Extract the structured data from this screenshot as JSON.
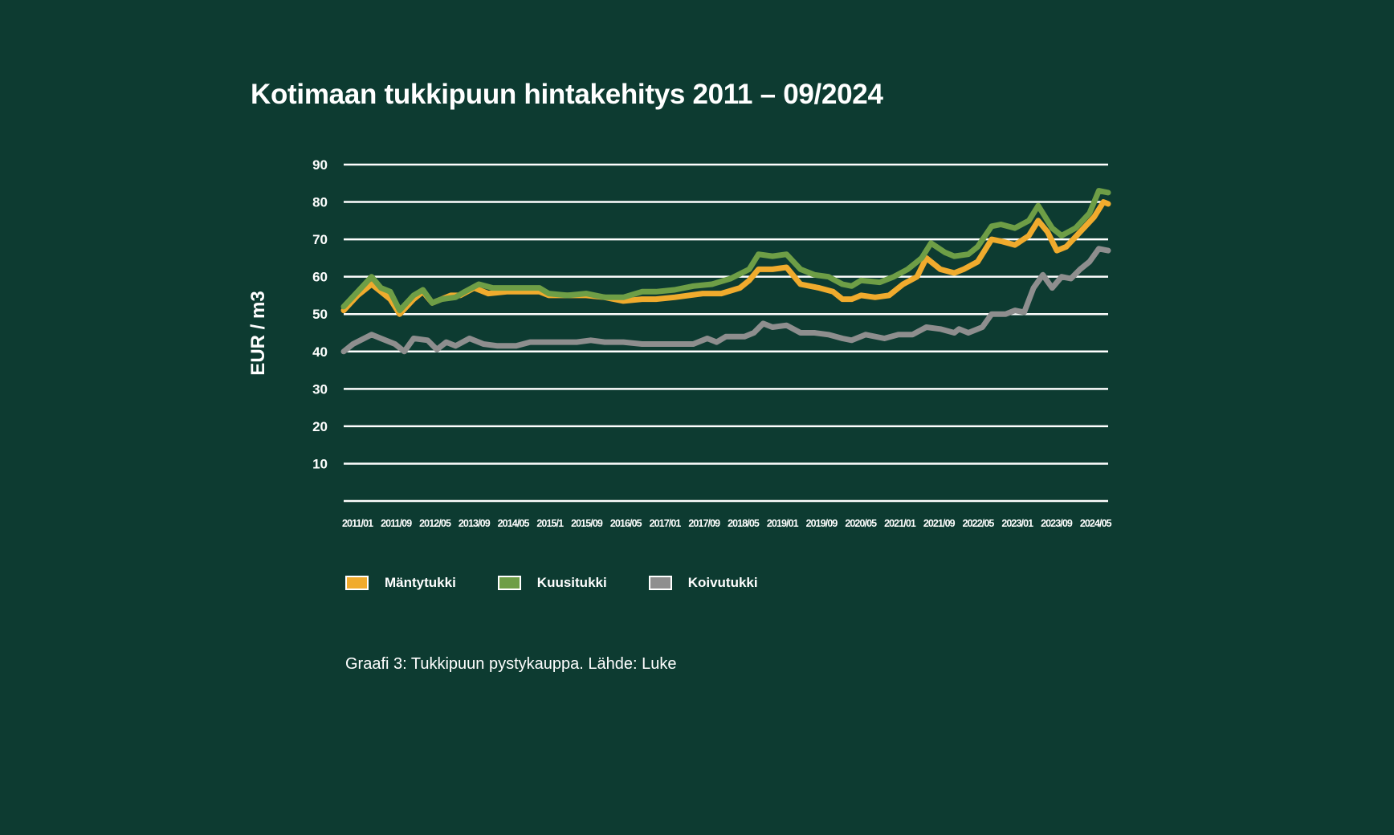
{
  "chart_data": {
    "type": "line",
    "title": "Kotimaan tukkipuun hintakehitys 2011 – 09/2024",
    "ylabel": "EUR / m3",
    "xlabel": "",
    "x_unit": "months since 2011/01",
    "xlim": [
      0,
      164
    ],
    "ylim": [
      0,
      90
    ],
    "yticks": [
      10,
      20,
      30,
      40,
      50,
      60,
      70,
      80,
      90
    ],
    "xtick_labels": [
      "2011/01",
      "2011/09",
      "2012/05",
      "2013/09",
      "2014/05",
      "2015/1",
      "2015/09",
      "2016/05",
      "2017/01",
      "2017/09",
      "2018/05",
      "2019/01",
      "2019/09",
      "2020/05",
      "2021/01",
      "2021/09",
      "2022/05",
      "2023/01",
      "2023/09",
      "2024/05"
    ],
    "grid": true,
    "legend_position": "bottom-left",
    "caption": "Graafi 3: Tukkipuun pystykauppa. Lähde: Luke",
    "series": [
      {
        "name": "Mäntytukki",
        "color": "#f0ab2d",
        "points": [
          [
            0,
            51
          ],
          [
            3,
            55
          ],
          [
            6,
            58
          ],
          [
            8,
            56
          ],
          [
            10,
            54
          ],
          [
            12,
            50
          ],
          [
            15,
            54
          ],
          [
            17,
            56
          ],
          [
            19,
            53
          ],
          [
            21,
            54
          ],
          [
            23,
            55
          ],
          [
            25,
            55
          ],
          [
            28,
            57
          ],
          [
            31,
            55.5
          ],
          [
            35,
            56
          ],
          [
            39,
            56
          ],
          [
            42,
            56
          ],
          [
            44,
            55
          ],
          [
            48,
            55
          ],
          [
            52,
            55
          ],
          [
            56,
            54.5
          ],
          [
            60,
            53.5
          ],
          [
            64,
            54
          ],
          [
            67,
            54
          ],
          [
            71,
            54.5
          ],
          [
            77,
            55.5
          ],
          [
            81,
            55.5
          ],
          [
            85,
            57
          ],
          [
            87,
            59
          ],
          [
            89,
            62
          ],
          [
            92,
            62
          ],
          [
            95,
            62.5
          ],
          [
            98,
            58
          ],
          [
            102,
            57
          ],
          [
            105,
            56
          ],
          [
            107,
            54
          ],
          [
            109,
            54
          ],
          [
            111,
            55
          ],
          [
            114,
            54.5
          ],
          [
            117,
            55
          ],
          [
            120,
            58
          ],
          [
            123,
            60
          ],
          [
            125,
            65
          ],
          [
            128,
            62
          ],
          [
            131,
            61
          ],
          [
            133,
            62
          ],
          [
            136,
            64
          ],
          [
            139,
            70
          ],
          [
            141,
            69.5
          ],
          [
            144,
            68.5
          ],
          [
            147,
            71
          ],
          [
            149,
            75
          ],
          [
            151,
            72
          ],
          [
            153,
            67
          ],
          [
            155,
            68
          ],
          [
            158,
            72
          ],
          [
            161,
            76
          ],
          [
            163,
            80
          ],
          [
            164,
            79.5
          ]
        ]
      },
      {
        "name": "Kuusitukki",
        "color": "#6e9e46",
        "points": [
          [
            0,
            52
          ],
          [
            3,
            56
          ],
          [
            6,
            60
          ],
          [
            8,
            57
          ],
          [
            10,
            56
          ],
          [
            12,
            51
          ],
          [
            15,
            55
          ],
          [
            17,
            56.5
          ],
          [
            19,
            53
          ],
          [
            21,
            54
          ],
          [
            24,
            54.5
          ],
          [
            26,
            56
          ],
          [
            29,
            58
          ],
          [
            32,
            57
          ],
          [
            35,
            57
          ],
          [
            39,
            57
          ],
          [
            42,
            57
          ],
          [
            44,
            55.5
          ],
          [
            48,
            55
          ],
          [
            52,
            55.5
          ],
          [
            56,
            54.5
          ],
          [
            60,
            54.5
          ],
          [
            64,
            56
          ],
          [
            67,
            56
          ],
          [
            71,
            56.5
          ],
          [
            75,
            57.5
          ],
          [
            79,
            58
          ],
          [
            83,
            59.5
          ],
          [
            87,
            62
          ],
          [
            89,
            66
          ],
          [
            92,
            65.5
          ],
          [
            95,
            66
          ],
          [
            98,
            62
          ],
          [
            101,
            60.5
          ],
          [
            104,
            60
          ],
          [
            107,
            58
          ],
          [
            109,
            57.5
          ],
          [
            111,
            59
          ],
          [
            115,
            58.5
          ],
          [
            118,
            60
          ],
          [
            121,
            62
          ],
          [
            124,
            65
          ],
          [
            126,
            69
          ],
          [
            129,
            66.5
          ],
          [
            131,
            65.5
          ],
          [
            134,
            66
          ],
          [
            136,
            68
          ],
          [
            139,
            73.5
          ],
          [
            141,
            74
          ],
          [
            144,
            73
          ],
          [
            147,
            75
          ],
          [
            149,
            79
          ],
          [
            152,
            73
          ],
          [
            154,
            71
          ],
          [
            157,
            73
          ],
          [
            160,
            77
          ],
          [
            162,
            83
          ],
          [
            164,
            82.5
          ]
        ]
      },
      {
        "name": "Koivutukki",
        "color": "#8e8e8e",
        "points": [
          [
            0,
            40
          ],
          [
            2,
            42
          ],
          [
            6,
            44.5
          ],
          [
            8,
            43.5
          ],
          [
            11,
            42
          ],
          [
            13,
            40
          ],
          [
            15,
            43.5
          ],
          [
            18,
            43
          ],
          [
            20,
            40.5
          ],
          [
            22,
            42.5
          ],
          [
            24,
            41.5
          ],
          [
            27,
            43.5
          ],
          [
            30,
            42
          ],
          [
            33,
            41.5
          ],
          [
            37,
            41.5
          ],
          [
            40,
            42.5
          ],
          [
            43,
            42.5
          ],
          [
            46,
            42.5
          ],
          [
            50,
            42.5
          ],
          [
            53,
            43
          ],
          [
            56,
            42.5
          ],
          [
            60,
            42.5
          ],
          [
            64,
            42
          ],
          [
            67,
            42
          ],
          [
            71,
            42
          ],
          [
            75,
            42
          ],
          [
            78,
            43.5
          ],
          [
            80,
            42.5
          ],
          [
            82,
            44
          ],
          [
            86,
            44
          ],
          [
            88,
            45
          ],
          [
            90,
            47.5
          ],
          [
            92,
            46.5
          ],
          [
            95,
            47
          ],
          [
            98,
            45
          ],
          [
            101,
            45
          ],
          [
            104,
            44.5
          ],
          [
            107,
            43.5
          ],
          [
            109,
            43
          ],
          [
            112,
            44.5
          ],
          [
            116,
            43.5
          ],
          [
            119,
            44.5
          ],
          [
            122,
            44.5
          ],
          [
            125,
            46.5
          ],
          [
            128,
            46
          ],
          [
            131,
            45
          ],
          [
            132,
            46
          ],
          [
            134,
            45
          ],
          [
            137,
            46.5
          ],
          [
            139,
            50
          ],
          [
            142,
            50
          ],
          [
            144,
            51
          ],
          [
            146,
            50.5
          ],
          [
            148,
            57
          ],
          [
            150,
            60.5
          ],
          [
            152,
            57
          ],
          [
            154,
            60
          ],
          [
            156,
            59.5
          ],
          [
            158,
            62
          ],
          [
            160,
            64
          ],
          [
            162,
            67.5
          ],
          [
            164,
            67
          ]
        ]
      }
    ]
  }
}
